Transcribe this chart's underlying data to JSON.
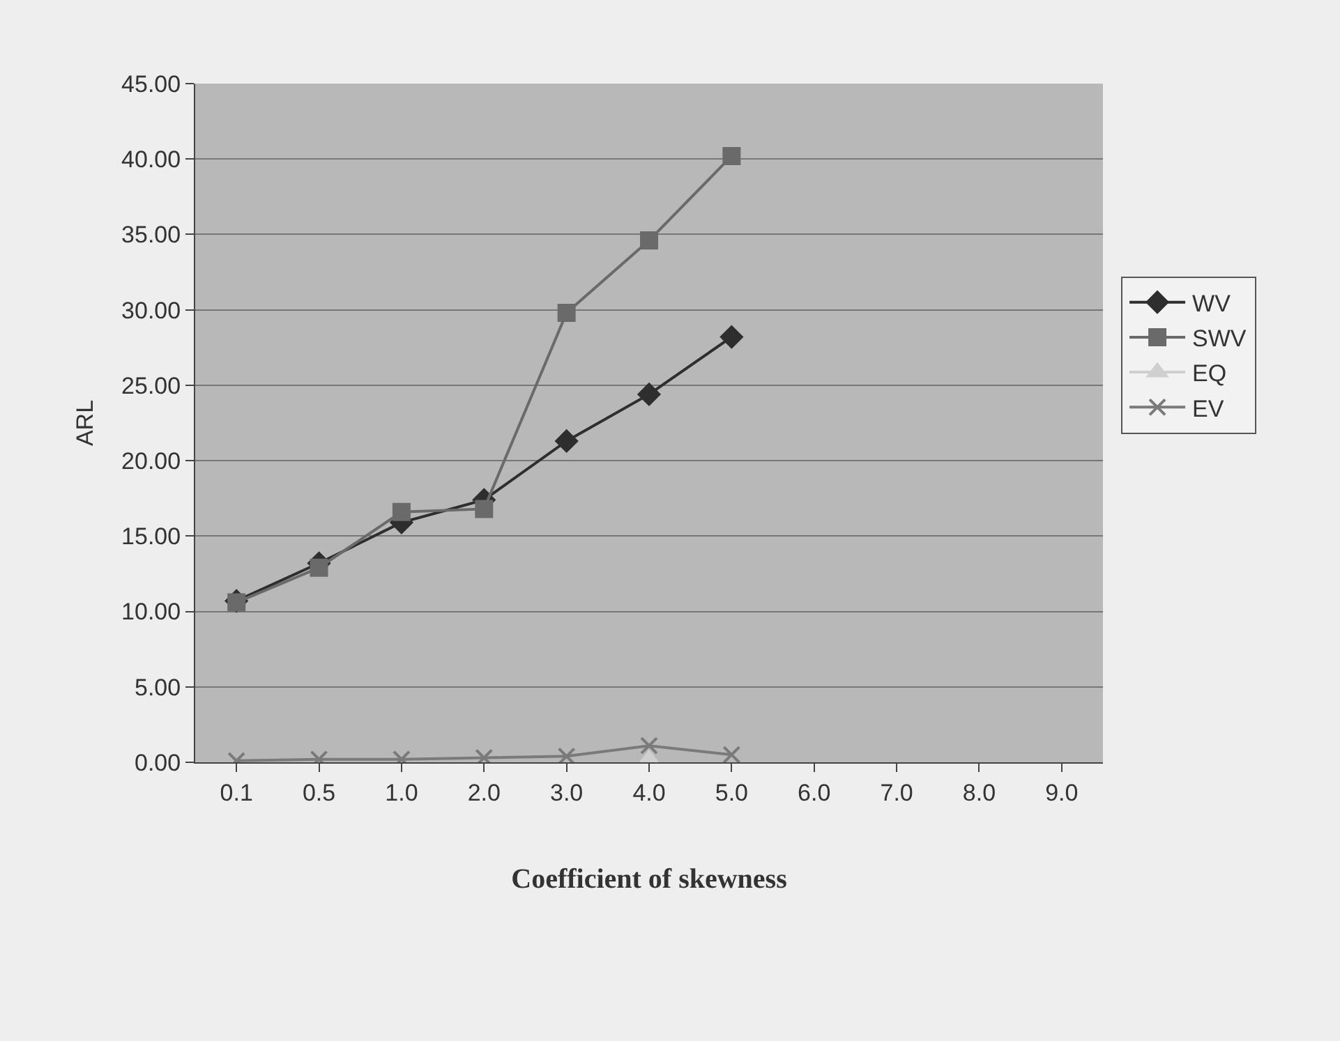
{
  "chart_data": {
    "type": "line",
    "xlabel": "Coefficient of skewness",
    "ylabel": "ARL",
    "categories": [
      "0.1",
      "0.5",
      "1.0",
      "2.0",
      "3.0",
      "4.0",
      "5.0",
      "6.0",
      "7.0",
      "8.0",
      "9.0"
    ],
    "series": [
      {
        "name": "WV",
        "color": "#2e2e2e",
        "marker": "diamond",
        "values": [
          10.7,
          13.2,
          15.9,
          17.4,
          21.3,
          24.4,
          28.2,
          null,
          null,
          null,
          null
        ]
      },
      {
        "name": "SWV",
        "color": "#6a6a6a",
        "marker": "square",
        "values": [
          10.6,
          12.9,
          16.6,
          16.8,
          29.8,
          34.6,
          40.2,
          null,
          null,
          null,
          null
        ]
      },
      {
        "name": "EQ",
        "color": "#cfcfcf",
        "marker": "triangle",
        "values": [
          null,
          null,
          null,
          null,
          null,
          0.2,
          null,
          null,
          null,
          null,
          null
        ]
      },
      {
        "name": "EV",
        "color": "#7a7a7a",
        "marker": "cross",
        "values": [
          0.1,
          0.2,
          0.2,
          0.3,
          0.4,
          1.1,
          0.5,
          null,
          null,
          null,
          null
        ]
      }
    ],
    "ylim": [
      0,
      45
    ],
    "yticks": [
      {
        "value": 0,
        "label": "0.00"
      },
      {
        "value": 5,
        "label": "5.00"
      },
      {
        "value": 10,
        "label": "10.00"
      },
      {
        "value": 15,
        "label": "15.00"
      },
      {
        "value": 20,
        "label": "20.00"
      },
      {
        "value": 25,
        "label": "25.00"
      },
      {
        "value": 30,
        "label": "30.00"
      },
      {
        "value": 35,
        "label": "35.00"
      },
      {
        "value": 40,
        "label": "40.00"
      },
      {
        "value": 45,
        "label": "45.00"
      }
    ],
    "grid": "y",
    "legend": "right"
  }
}
